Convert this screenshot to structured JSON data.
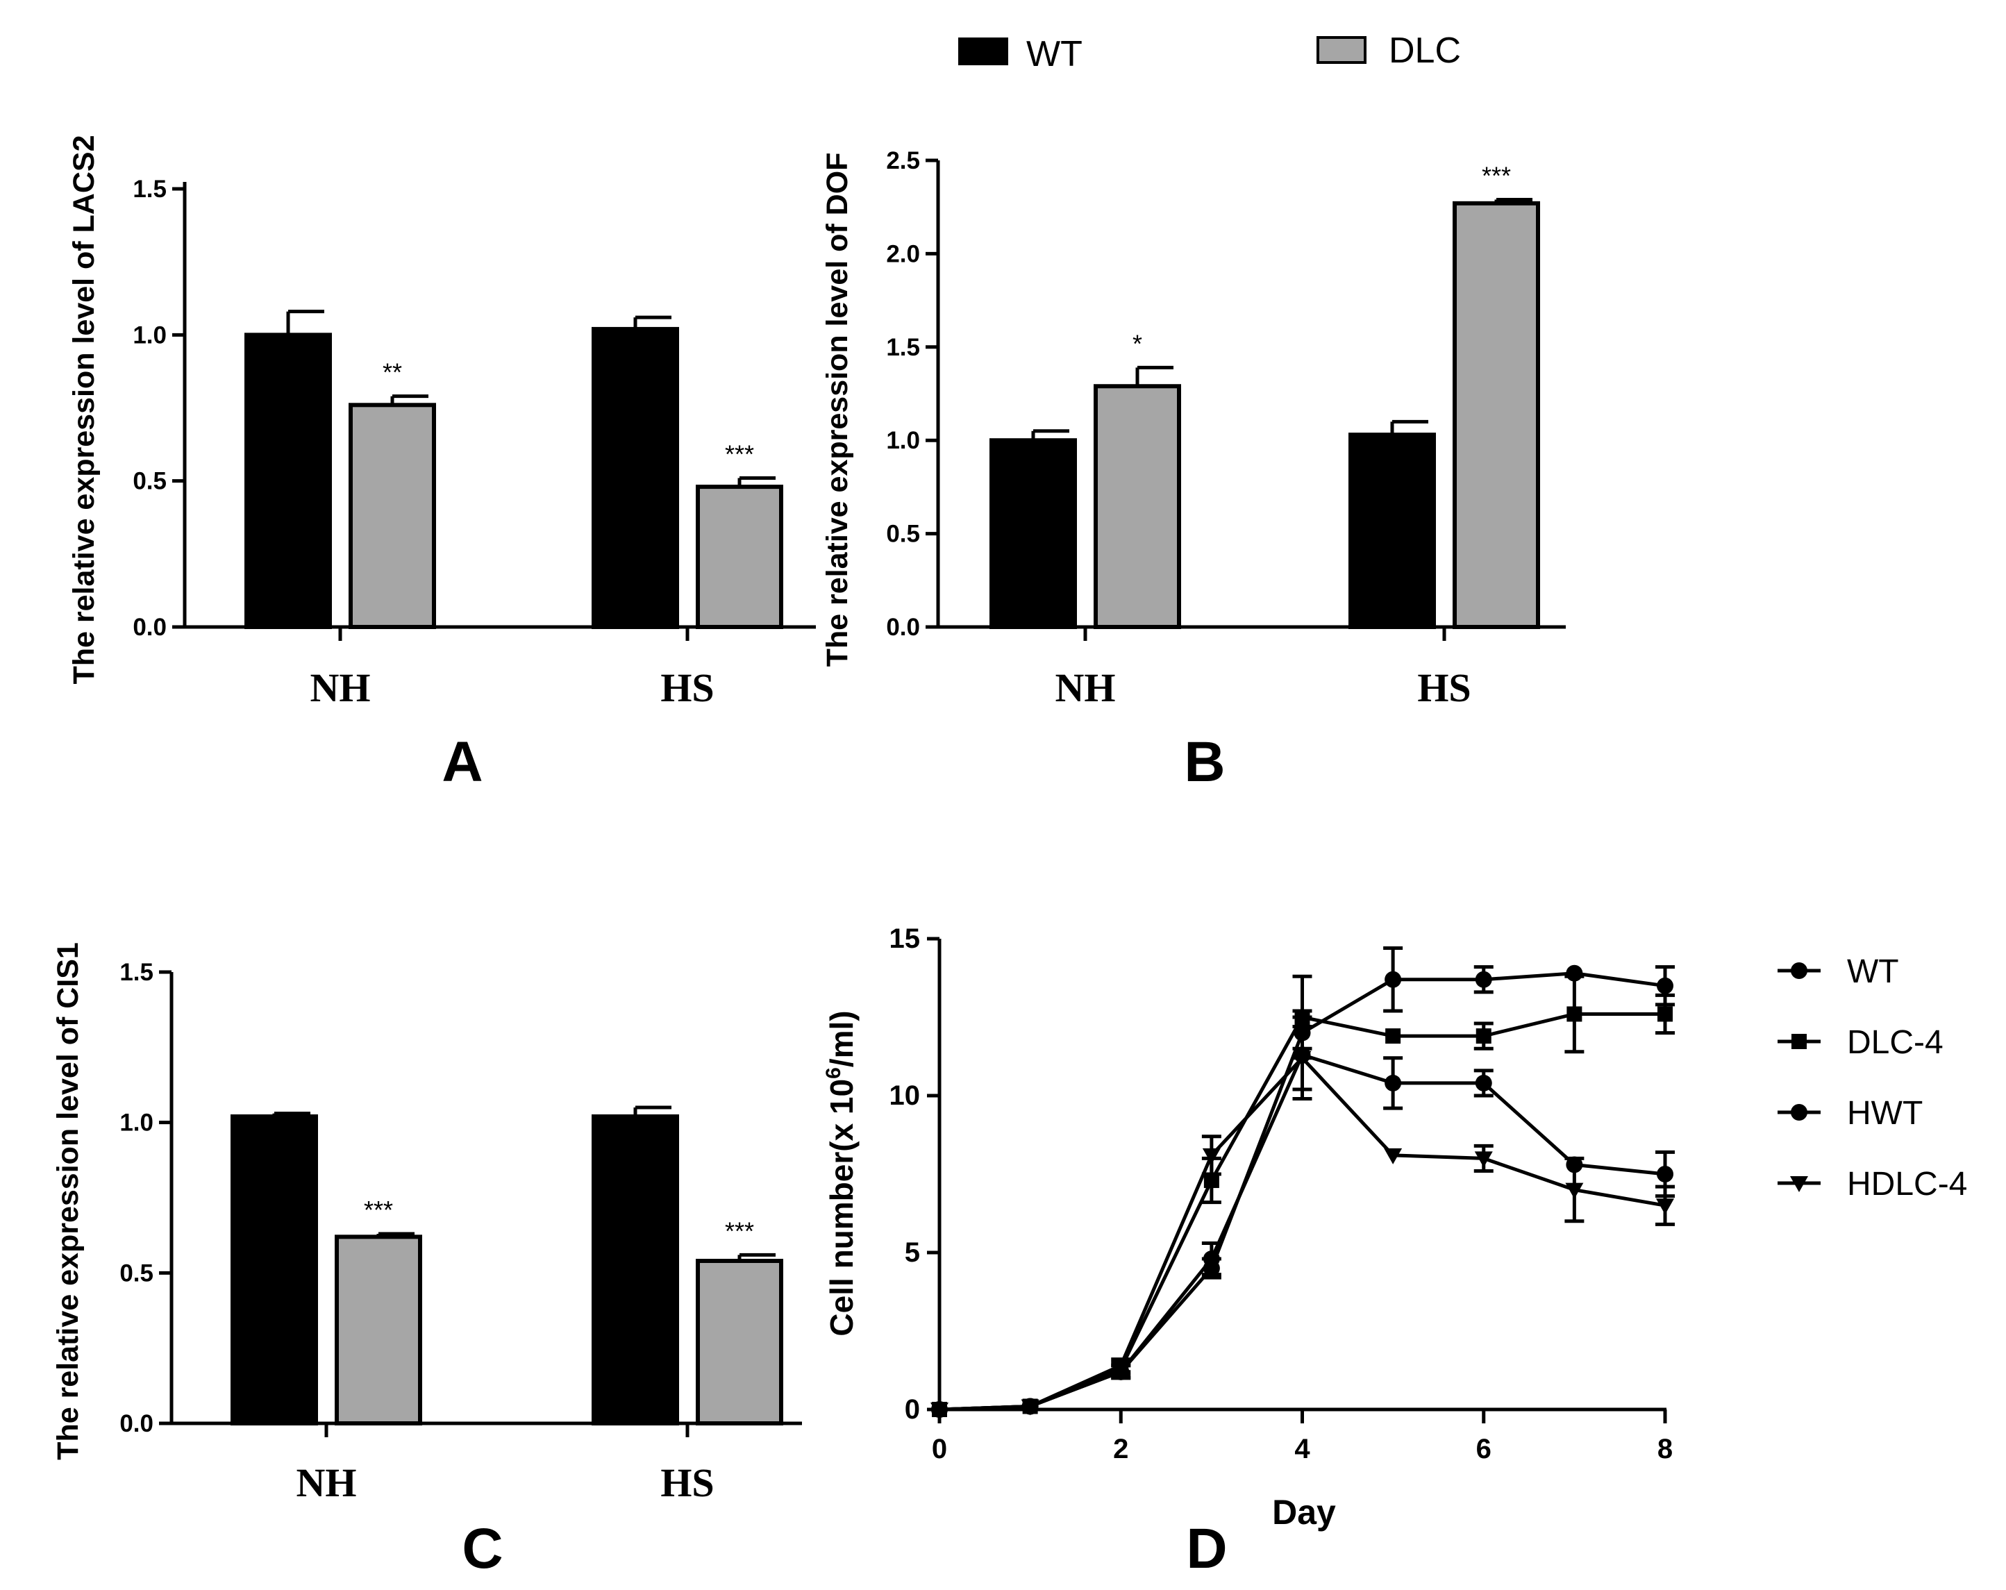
{
  "colors": {
    "wt_fill": "#000000",
    "dlc_fill": "#a6a6a6",
    "outline": "#000000"
  },
  "legend_top": {
    "items": [
      {
        "label": "WT"
      },
      {
        "label": "DLC"
      }
    ]
  },
  "chart_data": [
    {
      "panel": "A",
      "type": "bar",
      "ylabel": "The relative expression level of LACS2",
      "ylim": [
        0,
        1.5
      ],
      "yticks": [
        "0.0",
        "0.5",
        "1.0",
        "1.5"
      ],
      "categories": [
        "NH",
        "HS"
      ],
      "series": [
        {
          "name": "WT",
          "values": [
            1.0,
            1.02
          ],
          "errors": [
            0.08,
            0.04
          ]
        },
        {
          "name": "DLC",
          "values": [
            0.76,
            0.48
          ],
          "errors": [
            0.03,
            0.03
          ]
        }
      ],
      "significance": [
        [
          "",
          "**"
        ],
        [
          "",
          "***"
        ]
      ],
      "label": "A"
    },
    {
      "panel": "B",
      "type": "bar",
      "ylabel": "The relative expression level of DOF",
      "ylim": [
        0,
        2.5
      ],
      "yticks": [
        "0.0",
        "0.5",
        "1.0",
        "1.5",
        "2.0",
        "2.5"
      ],
      "categories": [
        "NH",
        "HS"
      ],
      "series": [
        {
          "name": "WT",
          "values": [
            1.0,
            1.03
          ],
          "errors": [
            0.05,
            0.07
          ]
        },
        {
          "name": "DLC",
          "values": [
            1.29,
            2.27
          ],
          "errors": [
            0.1,
            0.02
          ]
        }
      ],
      "significance": [
        [
          "",
          "*"
        ],
        [
          "",
          "***"
        ]
      ],
      "label": "B"
    },
    {
      "panel": "C",
      "type": "bar",
      "ylabel": "The relative expression level of CIS1",
      "ylim": [
        0,
        1.5
      ],
      "yticks": [
        "0.0",
        "0.5",
        "1.0",
        "1.5"
      ],
      "categories": [
        "NH",
        "HS"
      ],
      "series": [
        {
          "name": "WT",
          "values": [
            1.02,
            1.02
          ],
          "errors": [
            0.01,
            0.03
          ]
        },
        {
          "name": "DLC",
          "values": [
            0.62,
            0.54
          ],
          "errors": [
            0.01,
            0.02
          ]
        }
      ],
      "significance": [
        [
          "",
          "***"
        ],
        [
          "",
          "***"
        ]
      ],
      "label": "C"
    },
    {
      "panel": "D",
      "type": "line",
      "xlabel": "Day",
      "ylabel_pre": "Cell number(x 10",
      "ylabel_sup": "6",
      "ylabel_post": "/ml)",
      "xlim": [
        0,
        8
      ],
      "ylim": [
        0,
        15
      ],
      "xticks": [
        "0",
        "2",
        "4",
        "6",
        "8"
      ],
      "yticks": [
        "0",
        "5",
        "10",
        "15"
      ],
      "x": [
        0,
        1,
        2,
        3,
        4,
        5,
        6,
        7,
        8
      ],
      "series": [
        {
          "name": "WT",
          "marker": "circle",
          "values": [
            0,
            0.1,
            1.2,
            4.5,
            12.0,
            13.7,
            13.7,
            13.9,
            13.5
          ],
          "errors": [
            0,
            0,
            0.2,
            0.3,
            0.5,
            1.0,
            0.4,
            0,
            0.6
          ]
        },
        {
          "name": "DLC-4",
          "marker": "square",
          "values": [
            0,
            0.1,
            1.3,
            7.3,
            12.5,
            11.9,
            11.9,
            12.6,
            12.6
          ],
          "errors": [
            0,
            0,
            0.2,
            0.7,
            1.3,
            0,
            0.4,
            1.2,
            0.6
          ]
        },
        {
          "name": "HWT",
          "marker": "circle",
          "values": [
            0,
            0.1,
            1.2,
            4.8,
            11.3,
            10.4,
            10.4,
            7.8,
            7.5
          ],
          "errors": [
            0,
            0,
            0.2,
            0.5,
            1.4,
            0.8,
            0.4,
            0,
            0.7
          ]
        },
        {
          "name": "HDLC-4",
          "marker": "triangle-down",
          "values": [
            0,
            0.1,
            1.4,
            8.1,
            11.2,
            8.1,
            8.0,
            7.0,
            6.5
          ],
          "errors": [
            0,
            0,
            0.2,
            0.6,
            1.0,
            0,
            0.4,
            1.0,
            0.6
          ]
        }
      ],
      "label": "D"
    }
  ]
}
